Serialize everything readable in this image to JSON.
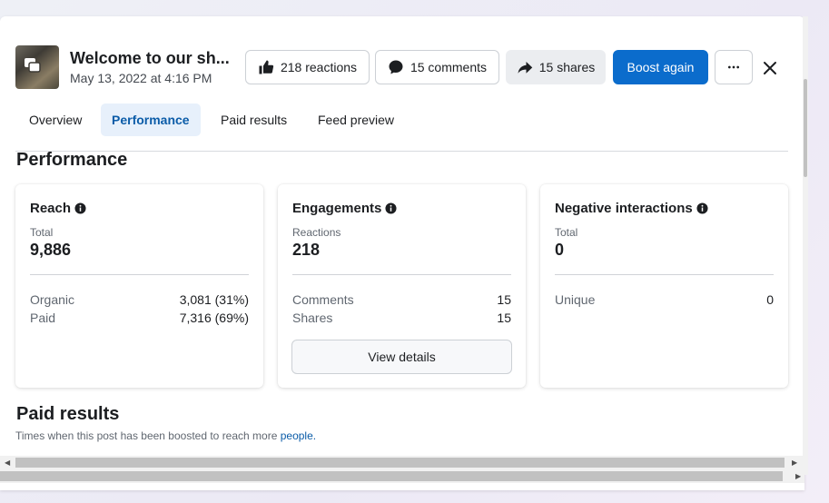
{
  "post": {
    "title": "Welcome to our sh...",
    "date": "May 13, 2022 at 4:16 PM"
  },
  "header_buttons": {
    "reactions": "218 reactions",
    "comments": "15 comments",
    "shares": "15 shares",
    "boost": "Boost again",
    "more": "···"
  },
  "tabs": [
    {
      "label": "Overview"
    },
    {
      "label": "Performance"
    },
    {
      "label": "Paid results"
    },
    {
      "label": "Feed preview"
    }
  ],
  "performance": {
    "title": "Performance",
    "reach": {
      "title": "Reach",
      "sublabel": "Total",
      "value": "9,886",
      "rows": [
        {
          "label": "Organic",
          "value": "3,081 (31%)"
        },
        {
          "label": "Paid",
          "value": "7,316 (69%)"
        }
      ]
    },
    "engagements": {
      "title": "Engagements",
      "sublabel": "Reactions",
      "value": "218",
      "rows": [
        {
          "label": "Comments",
          "value": "15"
        },
        {
          "label": "Shares",
          "value": "15"
        }
      ],
      "button": "View details"
    },
    "negative": {
      "title": "Negative interactions",
      "sublabel": "Total",
      "value": "0",
      "rows": [
        {
          "label": "Unique",
          "value": "0"
        }
      ]
    }
  },
  "paid_results": {
    "title": "Paid results",
    "description": "Times when this post has been boosted to reach more ",
    "link": "people."
  },
  "colors": {
    "accent": "#0b6ccc",
    "active_tab_bg": "#e7f0fb"
  },
  "icons": [
    "like-icon",
    "comment-icon",
    "share-icon",
    "more-icon",
    "close-icon",
    "info-icon"
  ]
}
